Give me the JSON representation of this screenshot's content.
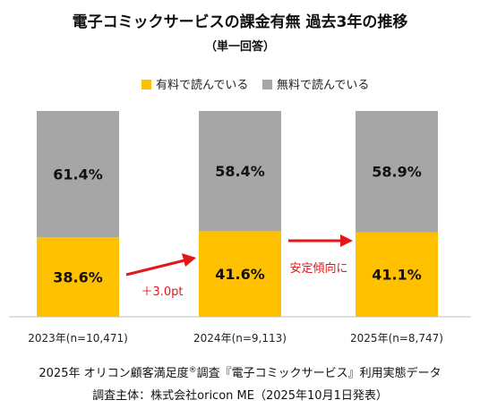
{
  "chart_data": {
    "type": "bar",
    "stacked": true,
    "percent_stacked": true,
    "title": "電子コミックサービスの課金有無 過去3年の推移",
    "subtitle": "（単一回答）",
    "categories": [
      "2023年(n=10,471)",
      "2024年(n=9,113)",
      "2025年(n=8,747)"
    ],
    "series": [
      {
        "name": "有料で読んでいる",
        "color": "#ffc000",
        "values": [
          38.6,
          41.6,
          41.1
        ],
        "labels": [
          "38.6%",
          "41.6%",
          "41.1%"
        ]
      },
      {
        "name": "無料で読んでいる",
        "color": "#a6a6a6",
        "values": [
          61.4,
          58.4,
          58.9
        ],
        "labels": [
          "61.4%",
          "58.4%",
          "58.9%"
        ]
      }
    ],
    "ylim": [
      0,
      100
    ],
    "legend_position": "top",
    "grid": false,
    "annotations": [
      {
        "text": "＋3.0pt",
        "between": [
          0,
          1
        ],
        "color": "#e3161a"
      },
      {
        "text": "安定傾向に",
        "between": [
          1,
          2
        ],
        "color": "#e3161a"
      }
    ]
  },
  "footer": {
    "line1_before": "2025年 オリコン顧客満足度",
    "line1_mark": "®",
    "line1_after": "調査『電子コミックサービス』利用実態データ",
    "line2": "調査主体：株式会社oricon ME（2025年10月1日発表）"
  }
}
